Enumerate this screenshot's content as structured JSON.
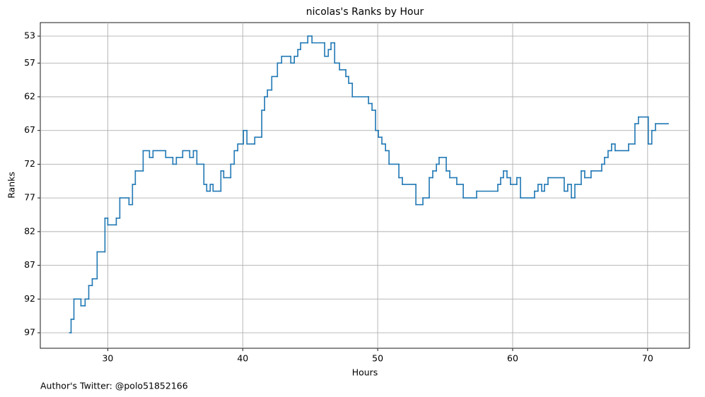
{
  "chart_data": {
    "type": "line",
    "step": "post",
    "title": "nicolas's Ranks by Hour",
    "x_label": "Hours",
    "y_label": "Ranks",
    "footer": "Author's Twitter: @polo51852166",
    "xlim": [
      25.0,
      73.1
    ],
    "xticks": [
      30,
      40,
      50,
      60,
      70
    ],
    "ylim": [
      99.3,
      51.0
    ],
    "yticks": [
      53,
      57,
      62,
      67,
      72,
      77,
      82,
      87,
      92,
      97
    ],
    "grid": true,
    "x": [
      27.17,
      27.28,
      27.49,
      28.01,
      28.32,
      28.59,
      28.85,
      29.21,
      29.79,
      30.0,
      30.63,
      30.89,
      31.57,
      31.83,
      32.04,
      32.62,
      33.09,
      33.35,
      34.29,
      34.82,
      35.08,
      35.55,
      36.07,
      36.34,
      36.6,
      37.12,
      37.33,
      37.59,
      37.8,
      38.38,
      38.59,
      39.11,
      39.37,
      39.63,
      40.05,
      40.31,
      40.89,
      41.41,
      41.62,
      41.83,
      42.15,
      42.57,
      42.88,
      43.56,
      43.82,
      44.08,
      44.29,
      44.82,
      45.13,
      46.07,
      46.34,
      46.54,
      46.81,
      47.17,
      47.64,
      47.85,
      48.12,
      49.32,
      49.58,
      49.84,
      50.05,
      50.31,
      50.58,
      50.84,
      51.57,
      51.83,
      52.83,
      53.35,
      53.82,
      54.08,
      54.35,
      54.55,
      55.08,
      55.34,
      55.86,
      56.34,
      57.33,
      58.9,
      59.11,
      59.32,
      59.58,
      59.84,
      60.31,
      60.58,
      61.62,
      61.88,
      62.15,
      62.36,
      62.62,
      63.82,
      64.08,
      64.35,
      64.61,
      65.08,
      65.34,
      65.81,
      66.6,
      66.81,
      67.07,
      67.33,
      67.59,
      68.59,
      69.06,
      69.32,
      70.05,
      70.31,
      70.58,
      71.52
    ],
    "series": [
      {
        "name": "Rank",
        "color": "#1f77b4",
        "values": [
          97,
          95,
          92,
          93,
          92,
          90,
          89,
          85,
          80,
          81,
          80,
          77,
          78,
          75,
          73,
          70,
          71,
          70,
          71,
          72,
          71,
          70,
          71,
          70,
          72,
          75,
          76,
          75,
          76,
          73,
          74,
          72,
          70,
          69,
          67,
          69,
          68,
          64,
          62,
          61,
          59,
          57,
          56,
          57,
          56,
          55,
          54,
          53,
          54,
          56,
          55,
          54,
          57,
          58,
          59,
          60,
          62,
          63,
          64,
          67,
          68,
          69,
          70,
          72,
          74,
          75,
          78,
          77,
          74,
          73,
          72,
          71,
          73,
          74,
          75,
          77,
          76,
          75,
          74,
          73,
          74,
          75,
          74,
          77,
          76,
          75,
          76,
          75,
          74,
          76,
          75,
          77,
          75,
          73,
          74,
          73,
          72,
          71,
          70,
          69,
          70,
          69,
          66,
          65,
          69,
          67,
          66,
          66
        ]
      }
    ]
  }
}
